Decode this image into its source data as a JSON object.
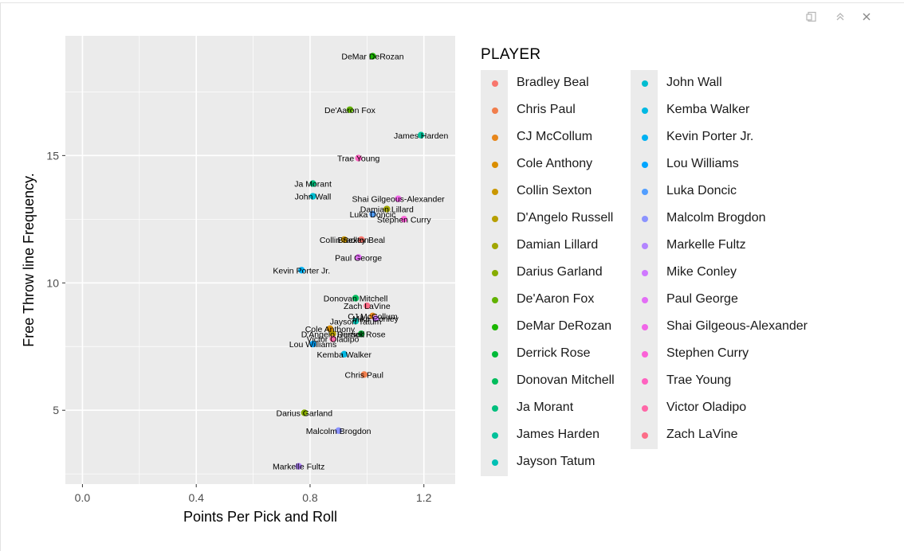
{
  "toolbar": {
    "icons": [
      "export-icon",
      "collapse-icon",
      "close-icon"
    ]
  },
  "chart_data": {
    "type": "scatter",
    "title": "",
    "xlabel": "Points Per Pick and Roll",
    "ylabel": "Free Throw line Frequency.",
    "xlim": [
      -0.06,
      1.31
    ],
    "ylim": [
      2.1,
      19.7
    ],
    "x_ticks": [
      0.0,
      0.4,
      0.8,
      1.2
    ],
    "x_tick_labels": [
      "0.0",
      "0.4",
      "0.8",
      "1.2"
    ],
    "y_ticks": [
      5,
      10,
      15
    ],
    "y_tick_labels": [
      "5",
      "10",
      "15"
    ],
    "grid": true,
    "background": "#ebebeb",
    "legend_title": "PLAYER",
    "legend_position": "right",
    "points": [
      {
        "player": "Bradley Beal",
        "x": 0.98,
        "y": 11.7,
        "color": "#F8766D"
      },
      {
        "player": "Chris Paul",
        "x": 0.99,
        "y": 6.4,
        "color": "#F17E4C"
      },
      {
        "player": "CJ McCollum",
        "x": 1.02,
        "y": 8.7,
        "color": "#E7861B"
      },
      {
        "player": "Cole Anthony",
        "x": 0.87,
        "y": 8.2,
        "color": "#DA8E00"
      },
      {
        "player": "Collin Sexton",
        "x": 0.92,
        "y": 11.7,
        "color": "#CA9700"
      },
      {
        "player": "D'Angelo Russell",
        "x": 0.88,
        "y": 8.0,
        "color": "#B79F00"
      },
      {
        "player": "Damian Lillard",
        "x": 1.07,
        "y": 12.9,
        "color": "#A1A600"
      },
      {
        "player": "Darius Garland",
        "x": 0.78,
        "y": 4.9,
        "color": "#86AC00"
      },
      {
        "player": "De'Aaron Fox",
        "x": 0.94,
        "y": 16.8,
        "color": "#62B200"
      },
      {
        "player": "DeMar DeRozan",
        "x": 1.02,
        "y": 18.9,
        "color": "#1BB700"
      },
      {
        "player": "Derrick Rose",
        "x": 0.98,
        "y": 8.0,
        "color": "#00BA38"
      },
      {
        "player": "Donovan Mitchell",
        "x": 0.96,
        "y": 9.4,
        "color": "#00BC5C"
      },
      {
        "player": "Ja Morant",
        "x": 0.81,
        "y": 13.9,
        "color": "#00BF7D"
      },
      {
        "player": "James Harden",
        "x": 1.19,
        "y": 15.8,
        "color": "#00C19A"
      },
      {
        "player": "Jayson Tatum",
        "x": 0.96,
        "y": 8.5,
        "color": "#00C0B4"
      },
      {
        "player": "John Wall",
        "x": 0.81,
        "y": 13.4,
        "color": "#00BDD0"
      },
      {
        "player": "Kemba Walker",
        "x": 0.92,
        "y": 7.2,
        "color": "#00B9E3"
      },
      {
        "player": "Kevin Porter Jr.",
        "x": 0.77,
        "y": 10.5,
        "color": "#00B2F3"
      },
      {
        "player": "Lou Williams",
        "x": 0.81,
        "y": 7.6,
        "color": "#00A5FF"
      },
      {
        "player": "Luka Doncic",
        "x": 1.02,
        "y": 12.7,
        "color": "#529EFF"
      },
      {
        "player": "Malcolm Brogdon",
        "x": 0.9,
        "y": 4.2,
        "color": "#8B93FF"
      },
      {
        "player": "Markelle Fultz",
        "x": 0.76,
        "y": 2.8,
        "color": "#B385FF"
      },
      {
        "player": "Mike Conley",
        "x": 1.03,
        "y": 8.6,
        "color": "#CF78FF"
      },
      {
        "player": "Paul George",
        "x": 0.97,
        "y": 11.0,
        "color": "#E36EF6"
      },
      {
        "player": "Shai Gilgeous-Alexander",
        "x": 1.11,
        "y": 13.3,
        "color": "#F166E8"
      },
      {
        "player": "Stephen Curry",
        "x": 1.13,
        "y": 12.5,
        "color": "#FB61D7"
      },
      {
        "player": "Trae Young",
        "x": 0.97,
        "y": 14.9,
        "color": "#FF62C0"
      },
      {
        "player": "Victor Oladipo",
        "x": 0.88,
        "y": 7.8,
        "color": "#FF67A7"
      },
      {
        "player": "Zach LaVine",
        "x": 1.0,
        "y": 9.1,
        "color": "#FC6D88"
      }
    ]
  }
}
